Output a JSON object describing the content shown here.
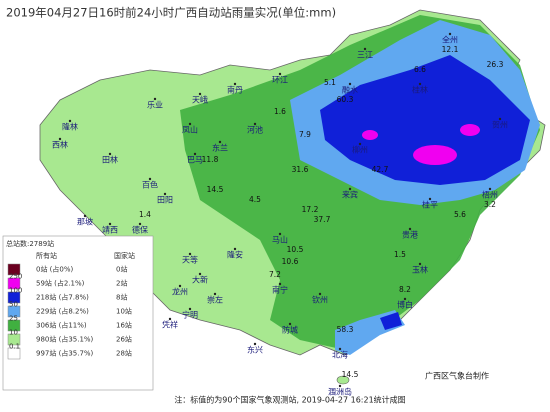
{
  "title": "2019年04月27日16时前24小时广西自动站雨量实况(单位:mm)",
  "legend": {
    "total": "总站数:2789站",
    "header_all": "所有站",
    "header_national": "国家站",
    "rows": [
      {
        "all": "0站 (占0%)",
        "national": "0站",
        "color": "#6b0020"
      },
      {
        "all": "59站 (占2.1%)",
        "national": "2站",
        "color": "#f000f0"
      },
      {
        "all": "218站 (占7.8%)",
        "national": "8站",
        "color": "#1020d8"
      },
      {
        "all": "229站 (占8.2%)",
        "national": "10站",
        "color": "#60a8f0"
      },
      {
        "all": "306站 (占11%)",
        "national": "16站",
        "color": "#40b040"
      },
      {
        "all": "980站 (占35.1%)",
        "national": "26站",
        "color": "#a8e890"
      },
      {
        "all": "997站 (占35.7%)",
        "national": "28站",
        "color": "#ffffff"
      }
    ],
    "thresholds": [
      "250",
      "100",
      "50",
      "25",
      "10",
      "0.1"
    ]
  },
  "places": [
    "隆林",
    "西林",
    "田林",
    "乐业",
    "凤山",
    "天峨",
    "南丹",
    "环江",
    "河池",
    "东兰",
    "巴马",
    "百色",
    "田阳",
    "靖西",
    "德保",
    "那坡",
    "大新",
    "天等",
    "隆安",
    "马山",
    "南宁",
    "崇左",
    "龙州",
    "凭祥",
    "宁明",
    "钦州",
    "防城",
    "东兴",
    "北海",
    "涠洲岛",
    "玉林",
    "梧州",
    "贺州",
    "桂林",
    "全州",
    "三江",
    "融水",
    "柳州",
    "来宾",
    "贵港",
    "桂平",
    "博白"
  ],
  "amounts": [
    12.1,
    26.3,
    6.6,
    5.1,
    60.3,
    1.6,
    11.8,
    7.9,
    31.6,
    14.5,
    17.2,
    37.7,
    5.6,
    3.2,
    1.4,
    10.5,
    10.6,
    1.5,
    8.2,
    58.3,
    14.5,
    42.7,
    4.5,
    7.2
  ],
  "credit": "广西区气象台制作",
  "footer": "注：标值的为90个国家气象观测站, 2019-04-27 16:21统计成图"
}
